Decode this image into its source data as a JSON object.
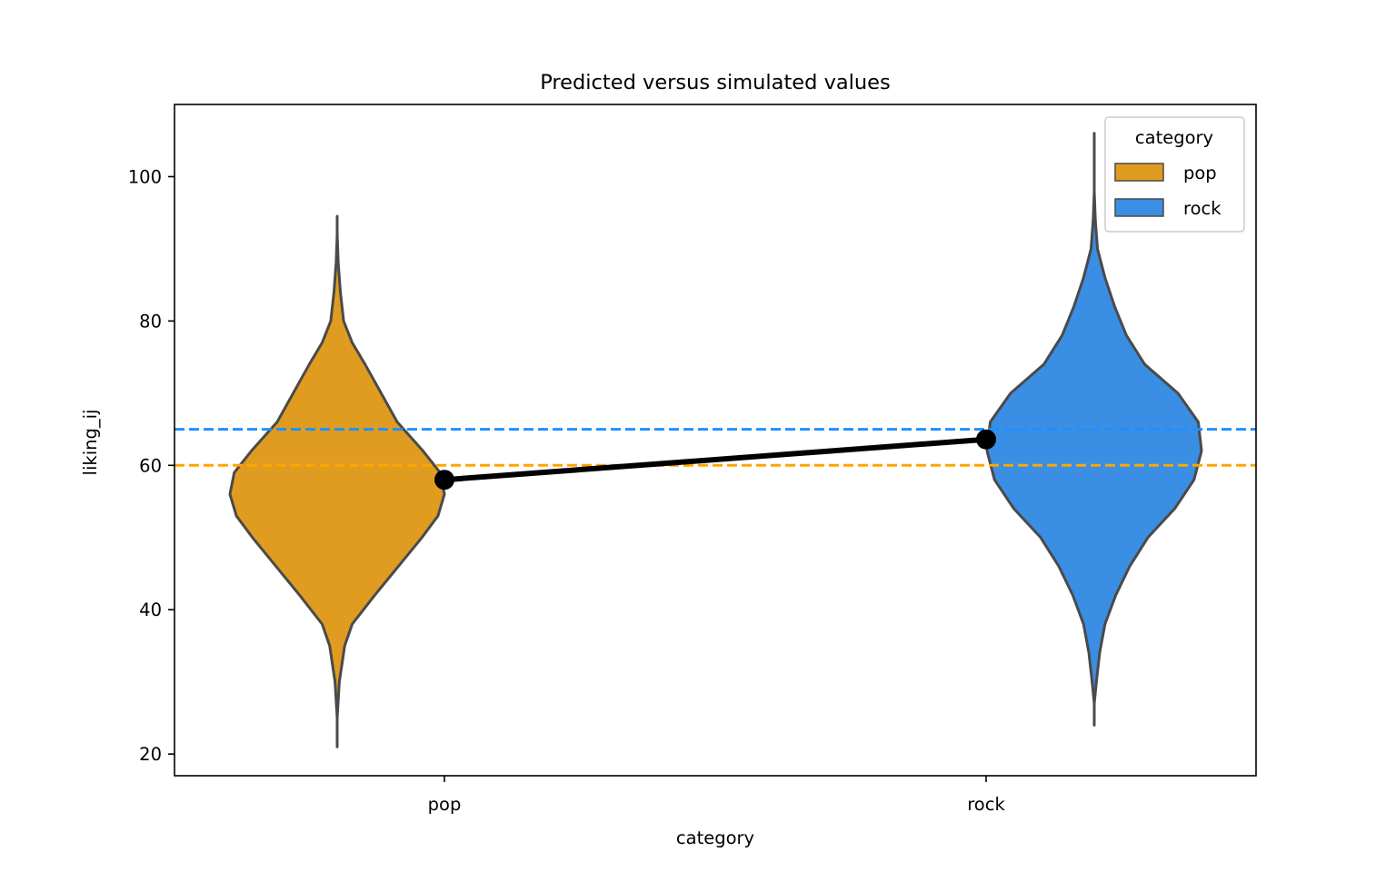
{
  "chart_data": {
    "type": "violin",
    "title": "Predicted versus simulated values",
    "xlabel": "category",
    "ylabel": "liking_ij",
    "categories": [
      "pop",
      "rock"
    ],
    "ylim": [
      17,
      110
    ],
    "yticks": [
      20,
      40,
      60,
      80,
      100
    ],
    "grid": false,
    "legend": {
      "title": "category",
      "placement": "upper right",
      "entries": [
        {
          "label": "pop",
          "color": "#e09c20"
        },
        {
          "label": "rock",
          "color": "#3a8ee3"
        }
      ]
    },
    "violins": [
      {
        "category": "pop",
        "color": "#e09c20",
        "outline_color": "#4a4a4a",
        "min": 21,
        "max": 94.5,
        "density": [
          {
            "y": 21,
            "w": 0.0
          },
          {
            "y": 25,
            "w": 0.0
          },
          {
            "y": 30,
            "w": 0.02
          },
          {
            "y": 35,
            "w": 0.07
          },
          {
            "y": 38,
            "w": 0.14
          },
          {
            "y": 42,
            "w": 0.35
          },
          {
            "y": 46,
            "w": 0.57
          },
          {
            "y": 50,
            "w": 0.79
          },
          {
            "y": 53,
            "w": 0.94
          },
          {
            "y": 56,
            "w": 1.0
          },
          {
            "y": 59,
            "w": 0.96
          },
          {
            "y": 62,
            "w": 0.8
          },
          {
            "y": 66,
            "w": 0.56
          },
          {
            "y": 70,
            "w": 0.41
          },
          {
            "y": 74,
            "w": 0.26
          },
          {
            "y": 77,
            "w": 0.14
          },
          {
            "y": 80,
            "w": 0.06
          },
          {
            "y": 84,
            "w": 0.03
          },
          {
            "y": 88,
            "w": 0.01
          },
          {
            "y": 92,
            "w": 0.0
          },
          {
            "y": 94.5,
            "w": 0.0
          }
        ]
      },
      {
        "category": "rock",
        "color": "#3a8ee3",
        "outline_color": "#4a4a4a",
        "min": 24,
        "max": 106,
        "density": [
          {
            "y": 24,
            "w": 0.0
          },
          {
            "y": 27,
            "w": 0.0
          },
          {
            "y": 30,
            "w": 0.02
          },
          {
            "y": 34,
            "w": 0.05
          },
          {
            "y": 38,
            "w": 0.1
          },
          {
            "y": 42,
            "w": 0.2
          },
          {
            "y": 46,
            "w": 0.33
          },
          {
            "y": 50,
            "w": 0.5
          },
          {
            "y": 54,
            "w": 0.75
          },
          {
            "y": 58,
            "w": 0.93
          },
          {
            "y": 62,
            "w": 1.0
          },
          {
            "y": 66,
            "w": 0.97
          },
          {
            "y": 70,
            "w": 0.78
          },
          {
            "y": 74,
            "w": 0.47
          },
          {
            "y": 78,
            "w": 0.3
          },
          {
            "y": 82,
            "w": 0.19
          },
          {
            "y": 86,
            "w": 0.1
          },
          {
            "y": 90,
            "w": 0.03
          },
          {
            "y": 94,
            "w": 0.01
          },
          {
            "y": 98,
            "w": 0.0
          },
          {
            "y": 106,
            "w": 0.0
          }
        ]
      }
    ],
    "reference_lines": [
      {
        "y": 65,
        "color": "#1e90ff",
        "style": "dashed",
        "label": "rock"
      },
      {
        "y": 60,
        "color": "#ffa500",
        "style": "dashed",
        "label": "pop"
      }
    ],
    "point_line": {
      "color": "#000000",
      "points": [
        {
          "category": "pop",
          "y": 58
        },
        {
          "category": "rock",
          "y": 63.6
        }
      ]
    }
  }
}
